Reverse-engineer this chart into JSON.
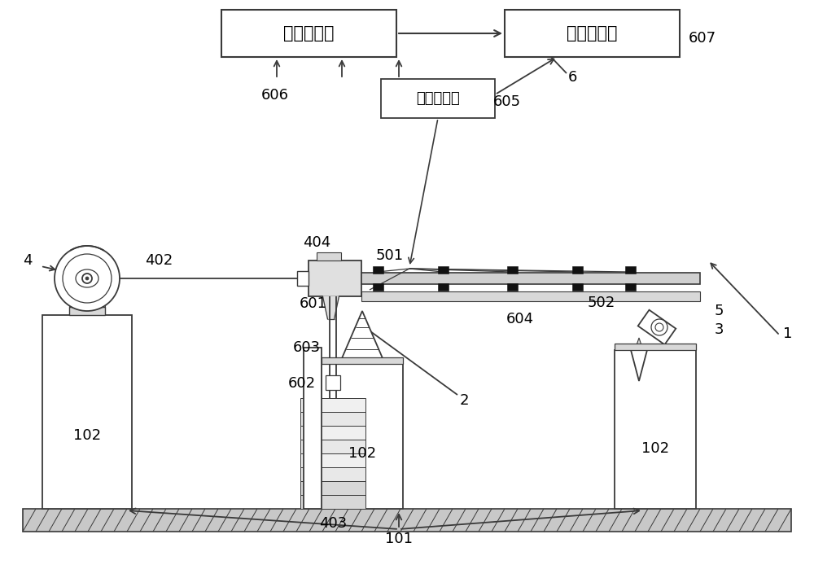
{
  "bg_color": "#ffffff",
  "lc": "#3a3a3a",
  "labels": {
    "box1_text": "数据采集仪",
    "box2_text": "测试计算机",
    "box3_text": "动态应变仪",
    "n1": "1",
    "n2": "2",
    "n3": "3",
    "n4": "4",
    "n5": "5",
    "n6": "6",
    "n101": "101",
    "n102": "102",
    "n402": "402",
    "n403": "403",
    "n404": "404",
    "n501": "501",
    "n502": "502",
    "n601": "601",
    "n602": "602",
    "n603": "603",
    "n604": "604",
    "n605": "605",
    "n606": "606",
    "n607": "607"
  }
}
